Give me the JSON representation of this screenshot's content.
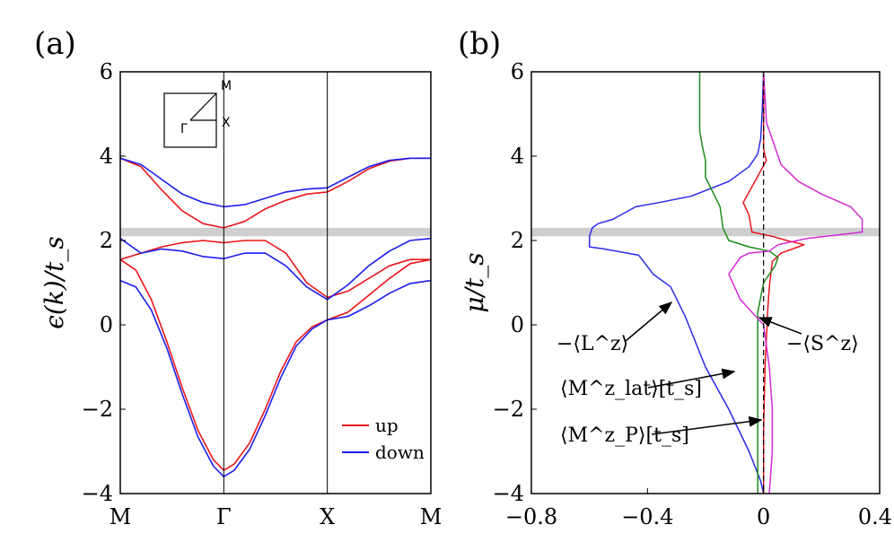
{
  "chart_data": [
    {
      "panel": "(a)",
      "type": "line",
      "ylabel": "ϵ(k)/t_s",
      "ylim": [
        -4,
        6
      ],
      "yticks": [
        "−4",
        "−2",
        "0",
        "2",
        "4",
        "6"
      ],
      "xticks": [
        "M",
        "Γ",
        "X",
        "M"
      ],
      "x_positions": [
        0,
        1,
        2,
        3
      ],
      "highlight_band": [
        2.1,
        2.3
      ],
      "inset_labels": [
        "M",
        "Γ",
        "X"
      ],
      "legend": [
        "up",
        "down"
      ],
      "colors": {
        "up": "#e8161c",
        "down": "#1d1df0"
      },
      "series": [
        {
          "name": "up",
          "band": 1,
          "x": [
            0,
            0.2,
            0.4,
            0.6,
            0.8,
            1.0,
            1.2,
            1.4,
            1.6,
            1.8,
            2.0,
            2.2,
            2.4,
            2.6,
            2.8,
            3.0
          ],
          "y": [
            3.95,
            3.75,
            3.2,
            2.7,
            2.4,
            2.3,
            2.45,
            2.75,
            2.95,
            3.1,
            3.15,
            3.4,
            3.7,
            3.88,
            3.95,
            3.95
          ]
        },
        {
          "name": "up",
          "band": 2,
          "x": [
            0,
            0.2,
            0.4,
            0.6,
            0.8,
            1.0,
            1.2,
            1.4,
            1.6,
            1.8,
            2.0,
            2.2,
            2.4,
            2.6,
            2.8,
            3.0
          ],
          "y": [
            1.55,
            1.7,
            1.85,
            1.95,
            2.0,
            1.95,
            2.0,
            2.0,
            1.7,
            1.0,
            0.65,
            0.8,
            1.1,
            1.4,
            1.55,
            1.55
          ]
        },
        {
          "name": "up",
          "band": 3,
          "x": [
            0,
            0.15,
            0.3,
            0.45,
            0.6,
            0.75,
            0.9,
            1.0,
            1.1,
            1.25,
            1.4,
            1.55,
            1.7,
            1.85,
            2.0,
            2.2,
            2.4,
            2.6,
            2.8,
            3.0
          ],
          "y": [
            1.55,
            1.3,
            0.6,
            -0.4,
            -1.5,
            -2.5,
            -3.2,
            -3.45,
            -3.3,
            -2.8,
            -2.0,
            -1.1,
            -0.4,
            -0.05,
            0.12,
            0.3,
            0.7,
            1.1,
            1.45,
            1.55
          ]
        },
        {
          "name": "down",
          "band": 1,
          "x": [
            0,
            0.2,
            0.4,
            0.6,
            0.8,
            1.0,
            1.2,
            1.4,
            1.6,
            1.8,
            2.0,
            2.2,
            2.4,
            2.6,
            2.8,
            3.0
          ],
          "y": [
            3.95,
            3.8,
            3.45,
            3.1,
            2.9,
            2.8,
            2.85,
            3.0,
            3.15,
            3.22,
            3.25,
            3.5,
            3.75,
            3.9,
            3.95,
            3.95
          ]
        },
        {
          "name": "down",
          "band": 2,
          "x": [
            0,
            0.2,
            0.4,
            0.6,
            0.8,
            1.0,
            1.2,
            1.4,
            1.6,
            1.8,
            2.0,
            2.2,
            2.4,
            2.6,
            2.8,
            3.0
          ],
          "y": [
            2.05,
            1.7,
            1.8,
            1.75,
            1.62,
            1.57,
            1.7,
            1.7,
            1.4,
            0.9,
            0.6,
            0.95,
            1.4,
            1.75,
            2.0,
            2.05
          ]
        },
        {
          "name": "down",
          "band": 3,
          "x": [
            0,
            0.15,
            0.3,
            0.45,
            0.6,
            0.75,
            0.9,
            1.0,
            1.1,
            1.25,
            1.4,
            1.55,
            1.7,
            1.85,
            2.0,
            2.2,
            2.4,
            2.6,
            2.8,
            3.0
          ],
          "y": [
            1.05,
            0.9,
            0.35,
            -0.55,
            -1.65,
            -2.65,
            -3.35,
            -3.6,
            -3.45,
            -2.95,
            -2.15,
            -1.25,
            -0.5,
            -0.1,
            0.12,
            0.2,
            0.45,
            0.75,
            0.98,
            1.05
          ]
        }
      ]
    },
    {
      "panel": "(b)",
      "type": "line",
      "ylabel": "μ/t_s",
      "ylim": [
        -4,
        6
      ],
      "xlim": [
        -0.8,
        0.4
      ],
      "yticks": [
        "−4",
        "−2",
        "0",
        "2",
        "4",
        "6"
      ],
      "xticks": [
        "−0.8",
        "−0.4",
        "0",
        "0.4"
      ],
      "xtick_values": [
        -0.8,
        -0.4,
        0,
        0.4
      ],
      "highlight_band": [
        2.1,
        2.3
      ],
      "colors": {
        "L": "#2a2ae6",
        "S": "#e8161c",
        "Mlat": "#1f8a1f",
        "MP": "#d42ad4"
      },
      "annotations": [
        "−⟨L^z⟩",
        "−⟨S^z⟩",
        "⟨M^z_lat⟩[t_s]",
        "⟨M^z_P⟩[t_s]"
      ],
      "series": [
        {
          "name": "−⟨L^z⟩",
          "x": [
            0,
            -0.005,
            -0.01,
            -0.02,
            -0.05,
            -0.12,
            -0.25,
            -0.36,
            -0.44,
            -0.52,
            -0.57,
            -0.59,
            -0.6,
            -0.6,
            -0.55,
            -0.43,
            -0.38,
            -0.32,
            -0.27,
            -0.2,
            -0.12,
            -0.05,
            -0.01,
            0
          ],
          "y": [
            6,
            5,
            4.4,
            4.05,
            3.75,
            3.4,
            3.05,
            2.9,
            2.8,
            2.5,
            2.4,
            2.3,
            2.1,
            1.85,
            1.8,
            1.65,
            1.2,
            0.9,
            0.2,
            -1.0,
            -2.0,
            -3.0,
            -3.7,
            -4
          ]
        },
        {
          "name": "−⟨S^z⟩",
          "x": [
            0,
            0,
            0,
            0.005,
            0.01,
            -0.03,
            -0.07,
            -0.05,
            -0.04,
            0.03,
            0.08,
            0.14,
            0.06,
            0.03,
            0.02,
            0.015,
            0.005,
            0.0,
            0.0
          ],
          "y": [
            6,
            5,
            4.2,
            4.0,
            3.9,
            3.4,
            2.9,
            2.6,
            2.2,
            2.1,
            2.0,
            1.9,
            1.7,
            1.5,
            0.9,
            0.4,
            -1.0,
            -2.5,
            -4
          ]
        },
        {
          "name": "⟨M^z_lat⟩[t_s]",
          "x": [
            -0.22,
            -0.22,
            -0.21,
            -0.2,
            -0.2,
            -0.15,
            -0.14,
            -0.12,
            -0.05,
            0.02,
            0.05,
            0.04,
            0.0,
            -0.02,
            -0.02,
            -0.02,
            -0.02
          ],
          "y": [
            6,
            4.6,
            4.2,
            3.9,
            3.5,
            2.8,
            2.3,
            2.0,
            1.85,
            1.75,
            1.6,
            1.4,
            1.0,
            0.3,
            -1.0,
            -2.5,
            -4
          ]
        },
        {
          "name": "⟨M^z_P⟩[t_s]",
          "x": [
            0,
            0.01,
            0.06,
            0.12,
            0.2,
            0.3,
            0.34,
            0.34,
            0.15,
            0.05,
            0.02,
            -0.05,
            -0.08,
            -0.12,
            -0.08,
            -0.04,
            0.0,
            0.02,
            0.03,
            0.03,
            0.02
          ],
          "y": [
            6,
            4.8,
            3.8,
            3.4,
            3.1,
            2.8,
            2.5,
            2.2,
            2.05,
            1.9,
            1.75,
            1.7,
            1.6,
            1.2,
            0.6,
            0.3,
            0.0,
            -1.0,
            -2.0,
            -3.0,
            -4
          ]
        }
      ]
    }
  ]
}
